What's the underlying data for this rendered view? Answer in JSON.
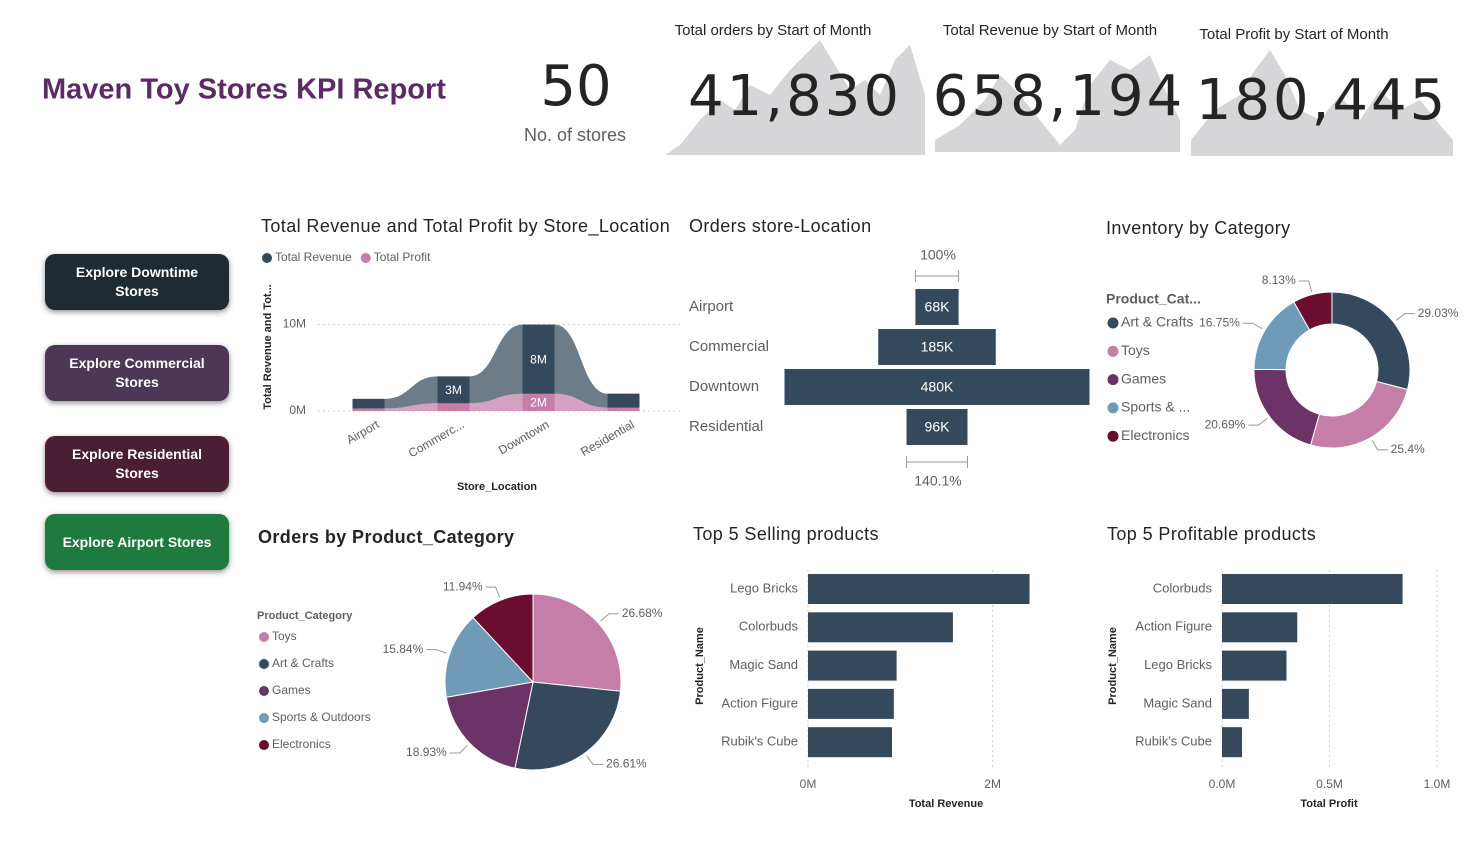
{
  "header": {
    "title": "Maven Toy Stores KPI Report"
  },
  "kpis": {
    "stores": {
      "value": "50",
      "label": "No. of stores"
    },
    "cards": [
      {
        "title": "Total orders by Start of Month",
        "value": "41,830"
      },
      {
        "title": "Total Revenue by Start of Month",
        "value": "658,194"
      },
      {
        "title": "Total Profit by Start of Month",
        "value": "180,445"
      }
    ]
  },
  "buttons": [
    "Explore Downtime Stores",
    "Explore Commercial Stores",
    "Explore Residential Stores",
    "Explore Airport Stores"
  ],
  "chart_data": [
    {
      "type": "area",
      "stacked": true,
      "title": "Total Revenue and Total Profit by Store_Location",
      "x_label": "Store_Location",
      "y_label": "Total Revenue and Tot...",
      "categories": [
        "Airport",
        "Commerc...",
        "Downtown",
        "Residential"
      ],
      "series": [
        {
          "name": "Total Revenue",
          "color": "#344a5c",
          "values": [
            1100000,
            3100000,
            8000000,
            1600000
          ],
          "value_labels": [
            null,
            "3M",
            "8M",
            null
          ]
        },
        {
          "name": "Total Profit",
          "color": "#c47ea8",
          "values": [
            300000,
            900000,
            2000000,
            400000
          ],
          "value_labels": [
            null,
            null,
            "2M",
            null
          ]
        }
      ],
      "ylim": [
        0,
        14000000
      ],
      "yticks": [
        {
          "value": 0,
          "label": "0M"
        },
        {
          "value": 10000000,
          "label": "10M"
        }
      ],
      "grid": true
    },
    {
      "type": "funnel",
      "title": "Orders store-Location",
      "categories": [
        "Airport",
        "Commercial",
        "Downtown",
        "Residential"
      ],
      "values": [
        68000,
        185000,
        480000,
        96000
      ],
      "value_labels": [
        "68K",
        "185K",
        "480K",
        "96K"
      ],
      "color": "#344a5c",
      "annotations": {
        "top": "100%",
        "bottom": "140.1%"
      }
    },
    {
      "type": "donut",
      "title": "Inventory by Category",
      "legend_title": "Product_Cat...",
      "categories": [
        "Art & Crafts",
        "Toys",
        "Games",
        "Sports & ...",
        "Electronics"
      ],
      "values": [
        29.03,
        25.4,
        20.69,
        16.75,
        8.13
      ],
      "value_labels": [
        "29.03%",
        "25.4%",
        "20.69%",
        "16.75%",
        "8.13%"
      ],
      "colors": [
        "#344a5c",
        "#c47ea8",
        "#6b3366",
        "#6f9ab8",
        "#6b0d2e"
      ]
    },
    {
      "type": "pie",
      "title": "Orders by Product_Category",
      "legend_title": "Product_Category",
      "categories": [
        "Toys",
        "Art & Crafts",
        "Games",
        "Sports & Outdoors",
        "Electronics"
      ],
      "values": [
        26.68,
        26.61,
        18.93,
        15.84,
        11.94
      ],
      "value_labels": [
        "26.68%",
        "26.61%",
        "18.93%",
        "15.84%",
        "11.94%"
      ],
      "colors": [
        "#c47ea8",
        "#344a5c",
        "#6b3366",
        "#6f9ab8",
        "#6b0d2e"
      ]
    },
    {
      "type": "bar",
      "horizontal": true,
      "title": "Top 5 Selling products",
      "x_label": "Total Revenue",
      "y_label": "Product_Name",
      "categories": [
        "Lego Bricks",
        "Colorbuds",
        "Magic Sand",
        "Action Figure",
        "Rubik's Cube"
      ],
      "values": [
        2400000,
        1570000,
        960000,
        930000,
        910000
      ],
      "color": "#344a5c",
      "xlim": [
        0,
        2600000
      ],
      "xticks": [
        {
          "value": 0,
          "label": "0M"
        },
        {
          "value": 2000000,
          "label": "2M"
        }
      ],
      "grid": true
    },
    {
      "type": "bar",
      "horizontal": true,
      "title": "Top 5 Profitable products",
      "x_label": "Total Profit",
      "y_label": "Product_Name",
      "categories": [
        "Colorbuds",
        "Action Figure",
        "Lego Bricks",
        "Magic Sand",
        "Rubik's Cube"
      ],
      "values": [
        840000,
        350000,
        300000,
        125000,
        93000
      ],
      "color": "#344a5c",
      "xlim": [
        0,
        1000000
      ],
      "xticks": [
        {
          "value": 0,
          "label": "0.0M"
        },
        {
          "value": 500000,
          "label": "0.5M"
        },
        {
          "value": 1000000,
          "label": "1.0M"
        }
      ],
      "grid": true
    }
  ]
}
